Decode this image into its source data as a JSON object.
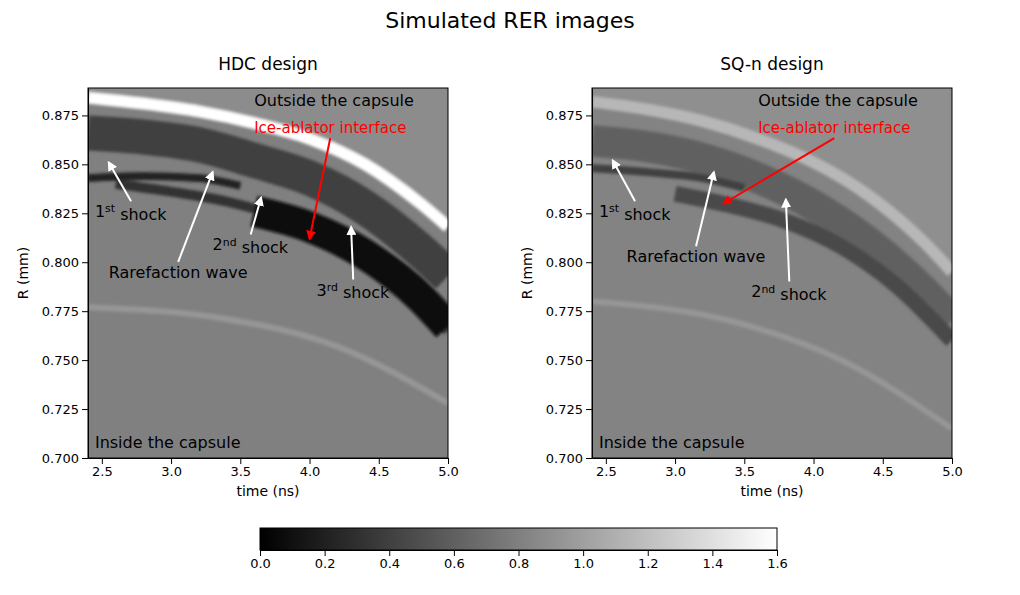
{
  "title": "Simulated RER images",
  "colorbar": {
    "range": [
      0,
      1.6
    ],
    "ticks": [
      {
        "value": 0,
        "label": "0.0"
      },
      {
        "value": 0.2,
        "label": "0.2"
      },
      {
        "value": 0.4,
        "label": "0.4"
      },
      {
        "value": 0.6,
        "label": "0.6"
      },
      {
        "value": 0.8,
        "label": "0.8"
      },
      {
        "value": 1.0,
        "label": "1.0"
      },
      {
        "value": 1.2,
        "label": "1.2"
      },
      {
        "value": 1.4,
        "label": "1.4"
      },
      {
        "value": 1.6,
        "label": "1.6"
      }
    ]
  },
  "chart_data": [
    {
      "type": "heatmap",
      "title": "HDC design",
      "x_label": "time (ns)",
      "y_label": "R (mm)",
      "xlim": [
        2.4,
        5.0
      ],
      "ylim": [
        0.7,
        0.889
      ],
      "xticks": [
        {
          "value": 2.5,
          "label": "2.5"
        },
        {
          "value": 3.0,
          "label": "3.0"
        },
        {
          "value": 3.5,
          "label": "3.5"
        },
        {
          "value": 4.0,
          "label": "4.0"
        },
        {
          "value": 4.5,
          "label": "4.5"
        },
        {
          "value": 5.0,
          "label": "5.0"
        }
      ],
      "yticks": [
        {
          "value": 0.7,
          "label": "0.700"
        },
        {
          "value": 0.725,
          "label": "0.725"
        },
        {
          "value": 0.75,
          "label": "0.750"
        },
        {
          "value": 0.775,
          "label": "0.775"
        },
        {
          "value": 0.8,
          "label": "0.800"
        },
        {
          "value": 0.825,
          "label": "0.825"
        },
        {
          "value": 0.85,
          "label": "0.850"
        },
        {
          "value": 0.875,
          "label": "0.875"
        }
      ],
      "background": 0.8,
      "outside": 0.88,
      "bands": [
        {
          "x": [
            2.4,
            2.8,
            3.2,
            3.6,
            4.0,
            4.4,
            4.8,
            5.0
          ],
          "values": [
            0.884,
            0.881,
            0.877,
            0.871,
            0.863,
            0.85,
            0.83,
            0.818
          ],
          "width": 0.006,
          "level": 1.6
        },
        {
          "x": [
            2.4,
            2.8,
            3.2,
            3.6,
            4.0,
            4.4,
            4.8,
            5.0
          ],
          "values": [
            0.866,
            0.864,
            0.86,
            0.852,
            0.843,
            0.828,
            0.806,
            0.793
          ],
          "width": 0.018,
          "level": 0.4
        },
        {
          "x": [
            2.4,
            2.8,
            3.2,
            3.5
          ],
          "values": [
            0.843,
            0.844,
            0.843,
            0.839
          ],
          "width": 0.004,
          "level": 0.2
        },
        {
          "x": [
            2.6,
            3.0,
            3.4,
            3.8,
            4.2,
            4.6,
            5.0
          ],
          "values": [
            0.84,
            0.836,
            0.831,
            0.823,
            0.811,
            0.792,
            0.765
          ],
          "width": 0.005,
          "level": 0.3
        },
        {
          "x": [
            3.6,
            4.0,
            4.4,
            4.8,
            5.0
          ],
          "values": [
            0.826,
            0.818,
            0.804,
            0.782,
            0.767
          ],
          "width": 0.016,
          "level": 0.1
        },
        {
          "x": [
            2.4,
            3.4,
            4.2,
            5.0
          ],
          "values": [
            0.777,
            0.771,
            0.757,
            0.728
          ],
          "width": 0.003,
          "level": 0.95
        }
      ],
      "annotations": [
        {
          "text": "Outside the capsule",
          "xytext": [
            3.6,
            0.88
          ]
        },
        {
          "text": "Ice-ablator interface",
          "xytext": [
            3.6,
            0.866
          ],
          "xy": [
            4.0,
            0.812
          ],
          "color": "red"
        },
        {
          "text": "1st shock",
          "xytext": [
            2.45,
            0.823
          ],
          "xy": [
            2.55,
            0.851
          ]
        },
        {
          "text": "Rarefaction wave",
          "xytext": [
            2.55,
            0.792
          ],
          "xy": [
            3.3,
            0.846
          ]
        },
        {
          "text": "2nd shock",
          "xytext": [
            3.3,
            0.806
          ],
          "xy": [
            3.65,
            0.833
          ]
        },
        {
          "text": "3rd shock",
          "xytext": [
            4.05,
            0.783
          ],
          "xy": [
            4.3,
            0.818
          ]
        },
        {
          "text": "Inside the capsule",
          "xytext": [
            2.45,
            0.705
          ]
        }
      ]
    },
    {
      "type": "heatmap",
      "title": "SQ-n design",
      "x_label": "time (ns)",
      "y_label": "R (mm)",
      "xlim": [
        2.4,
        5.0
      ],
      "ylim": [
        0.7,
        0.889
      ],
      "xticks": [
        {
          "value": 2.5,
          "label": "2.5"
        },
        {
          "value": 3.0,
          "label": "3.0"
        },
        {
          "value": 3.5,
          "label": "3.5"
        },
        {
          "value": 4.0,
          "label": "4.0"
        },
        {
          "value": 4.5,
          "label": "4.5"
        },
        {
          "value": 5.0,
          "label": "5.0"
        }
      ],
      "yticks": [
        {
          "value": 0.7,
          "label": "0.700"
        },
        {
          "value": 0.725,
          "label": "0.725"
        },
        {
          "value": 0.75,
          "label": "0.750"
        },
        {
          "value": 0.775,
          "label": "0.775"
        },
        {
          "value": 0.8,
          "label": "0.800"
        },
        {
          "value": 0.825,
          "label": "0.825"
        },
        {
          "value": 0.85,
          "label": "0.850"
        },
        {
          "value": 0.875,
          "label": "0.875"
        }
      ],
      "background": 0.82,
      "outside": 0.9,
      "bands": [
        {
          "x": [
            2.4,
            2.8,
            3.2,
            3.6,
            4.0,
            4.4,
            4.8,
            5.0
          ],
          "values": [
            0.882,
            0.878,
            0.872,
            0.863,
            0.851,
            0.834,
            0.81,
            0.795
          ],
          "width": 0.006,
          "level": 1.15
        },
        {
          "x": [
            2.4,
            2.8,
            3.2,
            3.6,
            4.0,
            4.4,
            4.8,
            5.0
          ],
          "values": [
            0.862,
            0.859,
            0.853,
            0.843,
            0.829,
            0.81,
            0.785,
            0.77
          ],
          "width": 0.016,
          "level": 0.6
        },
        {
          "x": [
            2.4,
            2.8,
            3.2,
            3.5
          ],
          "values": [
            0.848,
            0.846,
            0.843,
            0.838
          ],
          "width": 0.004,
          "level": 0.4
        },
        {
          "x": [
            3.0,
            3.4,
            3.8,
            4.2,
            4.6,
            5.0
          ],
          "values": [
            0.835,
            0.829,
            0.821,
            0.808,
            0.788,
            0.76
          ],
          "width": 0.008,
          "level": 0.45
        },
        {
          "x": [
            2.4,
            3.4,
            4.2,
            5.0
          ],
          "values": [
            0.78,
            0.77,
            0.75,
            0.715
          ],
          "width": 0.003,
          "level": 0.95
        }
      ],
      "annotations": [
        {
          "text": "Outside the capsule",
          "xytext": [
            3.6,
            0.88
          ]
        },
        {
          "text": "Ice-ablator interface",
          "xytext": [
            3.6,
            0.866
          ],
          "xy": [
            3.35,
            0.83
          ],
          "color": "red"
        },
        {
          "text": "1st shock",
          "xytext": [
            2.45,
            0.823
          ],
          "xy": [
            2.55,
            0.852
          ]
        },
        {
          "text": "Rarefaction wave",
          "xytext": [
            2.65,
            0.8
          ],
          "xy": [
            3.28,
            0.846
          ]
        },
        {
          "text": "2nd shock",
          "xytext": [
            3.55,
            0.782
          ],
          "xy": [
            3.8,
            0.832
          ]
        },
        {
          "text": "Inside the capsule",
          "xytext": [
            2.45,
            0.705
          ]
        }
      ]
    }
  ]
}
